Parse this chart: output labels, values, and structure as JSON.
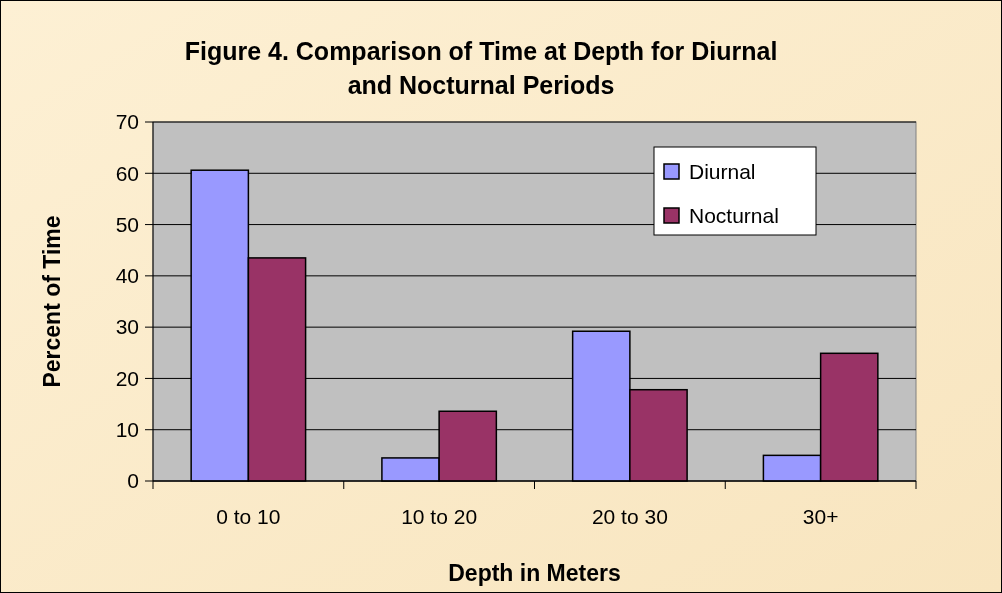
{
  "chart_data": {
    "type": "bar",
    "title": "Figure 4. Comparison of Time at Depth for Diurnal and Nocturnal Periods",
    "xlabel": "Depth in Meters",
    "ylabel": "Percent of Time",
    "categories": [
      "0 to 10",
      "10 to 20",
      "20 to 30",
      "30+"
    ],
    "series": [
      {
        "name": "Diurnal",
        "color": "#9999ff",
        "values": [
          60.6,
          4.5,
          29.2,
          5.0
        ]
      },
      {
        "name": "Nocturnal",
        "color": "#993366",
        "values": [
          43.5,
          13.6,
          17.8,
          24.9
        ]
      }
    ],
    "ylim": [
      0,
      70
    ],
    "yticks": [
      0,
      10,
      20,
      30,
      40,
      50,
      60,
      70
    ],
    "grid": "y",
    "legend": "top right"
  }
}
